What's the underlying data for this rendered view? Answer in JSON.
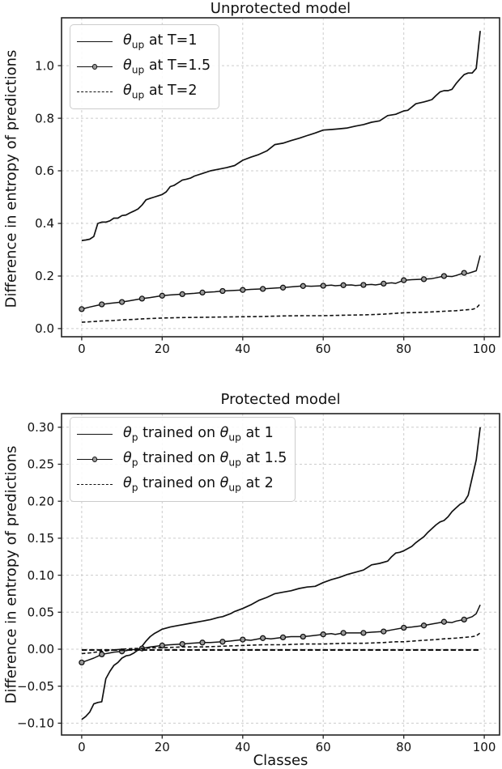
{
  "colors": {
    "line": "#111111",
    "grid": "#cccccc",
    "spine": "#222222",
    "text": "#111111",
    "marker_fill": "#999999",
    "legend_border": "#cccccc",
    "background": "#ffffff"
  },
  "chart_data": [
    {
      "type": "line",
      "title": "Unprotected model",
      "xlabel": "",
      "ylabel": "Difference in entropy of predictions",
      "xlim": [
        -5.0,
        103.8
      ],
      "ylim": [
        -0.031,
        1.182
      ],
      "grid": true,
      "legend_position": "upper left",
      "xticks": {
        "values": [
          0,
          20,
          40,
          60,
          80,
          100
        ],
        "labels": [
          "0",
          "20",
          "40",
          "60",
          "80",
          "100"
        ]
      },
      "yticks": {
        "values": [
          0.0,
          0.2,
          0.4,
          0.6,
          0.8,
          1.0
        ],
        "labels": [
          "0.0",
          "0.2",
          "0.4",
          "0.6",
          "0.8",
          "1.0"
        ]
      },
      "series": [
        {
          "name": "theta-up-T1",
          "label": "θup at T=1",
          "label_parts": [
            [
              "θ",
              "i"
            ],
            [
              "up",
              "s"
            ],
            [
              " at T=1",
              "n"
            ]
          ],
          "style": "solid",
          "x": [
            0,
            1,
            2,
            3,
            4,
            5,
            6,
            7,
            8,
            9,
            10,
            11,
            12,
            13,
            14,
            15,
            16,
            17,
            18,
            19,
            20,
            21,
            22,
            23,
            24,
            25,
            26,
            27,
            28,
            30,
            32,
            34,
            36,
            38,
            40,
            42,
            44,
            46,
            48,
            50,
            52,
            54,
            56,
            58,
            60,
            62,
            64,
            66,
            68,
            70,
            72,
            74,
            76,
            78,
            80,
            81,
            83,
            85,
            86,
            87,
            88,
            89,
            90,
            91,
            92,
            93,
            94,
            95,
            96,
            97,
            98,
            99
          ],
          "y": [
            0.335,
            0.337,
            0.34,
            0.35,
            0.4,
            0.405,
            0.405,
            0.41,
            0.42,
            0.42,
            0.43,
            0.432,
            0.44,
            0.447,
            0.455,
            0.47,
            0.49,
            0.495,
            0.5,
            0.505,
            0.51,
            0.52,
            0.54,
            0.545,
            0.555,
            0.565,
            0.568,
            0.572,
            0.58,
            0.59,
            0.6,
            0.606,
            0.612,
            0.62,
            0.64,
            0.652,
            0.662,
            0.676,
            0.7,
            0.705,
            0.715,
            0.724,
            0.734,
            0.744,
            0.755,
            0.757,
            0.76,
            0.763,
            0.77,
            0.776,
            0.785,
            0.79,
            0.81,
            0.815,
            0.828,
            0.83,
            0.855,
            0.862,
            0.866,
            0.871,
            0.886,
            0.9,
            0.905,
            0.905,
            0.91,
            0.932,
            0.95,
            0.966,
            0.972,
            0.972,
            0.99,
            1.132
          ]
        },
        {
          "name": "theta-up-T1.5",
          "label": "θup at T=1.5",
          "label_parts": [
            [
              "θ",
              "i"
            ],
            [
              "up",
              "s"
            ],
            [
              " at T=1.5",
              "n"
            ]
          ],
          "style": "marker",
          "markevery": 5,
          "x": [
            0,
            2,
            5,
            7,
            10,
            12,
            15,
            17,
            20,
            22,
            25,
            28,
            30,
            33,
            35,
            38,
            40,
            42,
            45,
            48,
            50,
            53,
            55,
            57,
            60,
            62,
            63,
            65,
            67,
            68,
            70,
            72,
            73,
            75,
            77,
            78,
            80,
            82,
            85,
            87,
            88,
            90,
            92,
            93,
            95,
            96,
            97,
            98,
            99
          ],
          "y": [
            0.074,
            0.082,
            0.092,
            0.096,
            0.101,
            0.106,
            0.114,
            0.118,
            0.125,
            0.128,
            0.131,
            0.134,
            0.137,
            0.14,
            0.143,
            0.145,
            0.147,
            0.149,
            0.151,
            0.154,
            0.156,
            0.16,
            0.162,
            0.161,
            0.163,
            0.165,
            0.163,
            0.165,
            0.166,
            0.164,
            0.166,
            0.168,
            0.166,
            0.171,
            0.174,
            0.172,
            0.184,
            0.186,
            0.188,
            0.19,
            0.193,
            0.2,
            0.198,
            0.202,
            0.212,
            0.21,
            0.215,
            0.22,
            0.278
          ]
        },
        {
          "name": "theta-up-T2",
          "label": "θup at T=2",
          "label_parts": [
            [
              "θ",
              "i"
            ],
            [
              "up",
              "s"
            ],
            [
              " at T=2",
              "n"
            ]
          ],
          "style": "dashed",
          "x": [
            0,
            3,
            5,
            8,
            10,
            13,
            15,
            18,
            20,
            25,
            30,
            35,
            40,
            45,
            50,
            55,
            60,
            65,
            70,
            75,
            80,
            85,
            88,
            90,
            93,
            95,
            97,
            98,
            99
          ],
          "y": [
            0.024,
            0.027,
            0.029,
            0.031,
            0.033,
            0.035,
            0.037,
            0.039,
            0.04,
            0.042,
            0.043,
            0.044,
            0.045,
            0.046,
            0.048,
            0.049,
            0.049,
            0.051,
            0.052,
            0.055,
            0.06,
            0.062,
            0.064,
            0.066,
            0.068,
            0.071,
            0.073,
            0.078,
            0.094
          ]
        }
      ]
    },
    {
      "type": "line",
      "title": "Protected model",
      "xlabel": "Classes",
      "ylabel": "Difference in entropy of predictions",
      "xlim": [
        -5.0,
        103.8
      ],
      "ylim": [
        -0.116,
        0.3184
      ],
      "grid": true,
      "legend_position": "upper left",
      "xticks": {
        "values": [
          0,
          20,
          40,
          60,
          80,
          100
        ],
        "labels": [
          "0",
          "20",
          "40",
          "60",
          "80",
          "100"
        ]
      },
      "yticks": {
        "values": [
          -0.1,
          -0.05,
          0.0,
          0.05,
          0.1,
          0.15,
          0.2,
          0.25,
          0.3
        ],
        "labels": [
          "−0.10",
          "−0.05",
          "0.00",
          "0.05",
          "0.10",
          "0.15",
          "0.20",
          "0.25",
          "0.30"
        ]
      },
      "series": [
        {
          "name": "theta-p-on-1",
          "label": "θp trained on θup at 1",
          "label_parts": [
            [
              "θ",
              "i"
            ],
            [
              "p",
              "s"
            ],
            [
              " trained on ",
              "n"
            ],
            [
              "θ",
              "i"
            ],
            [
              "up",
              "s"
            ],
            [
              " at 1",
              "n"
            ]
          ],
          "style": "solid",
          "x": [
            0,
            1,
            2,
            3,
            4,
            5,
            6,
            7,
            8,
            9,
            10,
            11,
            12,
            13,
            14,
            15,
            16,
            17,
            18,
            19,
            20,
            22,
            24,
            25,
            27,
            30,
            32,
            34,
            35,
            37,
            38,
            40,
            42,
            44,
            46,
            48,
            50,
            52,
            54,
            56,
            58,
            60,
            62,
            64,
            66,
            68,
            70,
            72,
            74,
            76,
            77,
            78,
            79,
            80,
            82,
            83,
            84,
            85,
            86,
            87,
            88,
            89,
            90,
            91,
            92,
            93,
            94,
            95,
            96,
            97,
            98,
            99
          ],
          "y": [
            -0.095,
            -0.091,
            -0.085,
            -0.074,
            -0.072,
            -0.071,
            -0.04,
            -0.03,
            -0.022,
            -0.018,
            -0.012,
            -0.009,
            -0.008,
            -0.005,
            -0.001,
            0.004,
            0.011,
            0.017,
            0.021,
            0.024,
            0.027,
            0.03,
            0.032,
            0.033,
            0.035,
            0.038,
            0.04,
            0.043,
            0.044,
            0.048,
            0.051,
            0.055,
            0.06,
            0.066,
            0.07,
            0.075,
            0.077,
            0.079,
            0.082,
            0.084,
            0.085,
            0.09,
            0.094,
            0.097,
            0.101,
            0.104,
            0.107,
            0.114,
            0.116,
            0.119,
            0.125,
            0.13,
            0.131,
            0.133,
            0.139,
            0.144,
            0.148,
            0.152,
            0.158,
            0.163,
            0.168,
            0.172,
            0.174,
            0.179,
            0.186,
            0.191,
            0.196,
            0.199,
            0.208,
            0.232,
            0.256,
            0.3
          ]
        },
        {
          "name": "theta-p-on-1.5",
          "label": "θp trained on θup at 1.5",
          "label_parts": [
            [
              "θ",
              "i"
            ],
            [
              "p",
              "s"
            ],
            [
              " trained on ",
              "n"
            ],
            [
              "θ",
              "i"
            ],
            [
              "up",
              "s"
            ],
            [
              " at 1.5",
              "n"
            ]
          ],
          "style": "marker",
          "markevery": 5,
          "x": [
            0,
            2,
            3,
            5,
            7,
            8,
            10,
            12,
            14,
            15,
            17,
            20,
            22,
            25,
            27,
            30,
            32,
            35,
            37,
            40,
            42,
            45,
            47,
            50,
            52,
            55,
            57,
            60,
            62,
            63,
            65,
            67,
            70,
            72,
            75,
            77,
            80,
            82,
            85,
            87,
            90,
            92,
            93,
            95,
            96,
            97,
            98,
            99
          ],
          "y": [
            -0.018,
            -0.014,
            -0.012,
            -0.007,
            -0.005,
            -0.004,
            -0.003,
            -0.001,
            0.0,
            0.001,
            0.003,
            0.005,
            0.006,
            0.007,
            0.008,
            0.009,
            0.009,
            0.01,
            0.011,
            0.013,
            0.012,
            0.015,
            0.014,
            0.016,
            0.017,
            0.017,
            0.018,
            0.02,
            0.021,
            0.02,
            0.022,
            0.022,
            0.022,
            0.023,
            0.024,
            0.026,
            0.029,
            0.03,
            0.032,
            0.034,
            0.037,
            0.036,
            0.038,
            0.04,
            0.042,
            0.044,
            0.048,
            0.06
          ]
        },
        {
          "name": "theta-p-on-2",
          "label": "θp trained on θup at 2",
          "label_parts": [
            [
              "θ",
              "i"
            ],
            [
              "p",
              "s"
            ],
            [
              " trained on ",
              "n"
            ],
            [
              "θ",
              "i"
            ],
            [
              "up",
              "s"
            ],
            [
              " at 2",
              "n"
            ]
          ],
          "style": "dashed",
          "x": [
            0,
            2,
            5,
            8,
            10,
            13,
            15,
            18,
            20,
            25,
            30,
            35,
            40,
            45,
            50,
            55,
            60,
            65,
            70,
            75,
            78,
            80,
            85,
            88,
            90,
            93,
            95,
            97,
            98,
            99
          ],
          "y": [
            -0.006,
            -0.005,
            -0.003,
            -0.001,
            0.0,
            0.001,
            0.001,
            0.002,
            0.002,
            0.003,
            0.003,
            0.004,
            0.005,
            0.006,
            0.006,
            0.007,
            0.007,
            0.008,
            0.008,
            0.009,
            0.01,
            0.01,
            0.012,
            0.013,
            0.014,
            0.015,
            0.016,
            0.017,
            0.018,
            0.022
          ]
        },
        {
          "name": "zero-reference",
          "label": "",
          "style": "zero",
          "legend": false,
          "x": [
            0,
            99
          ],
          "y": [
            -0.001,
            -0.001
          ]
        }
      ]
    }
  ]
}
